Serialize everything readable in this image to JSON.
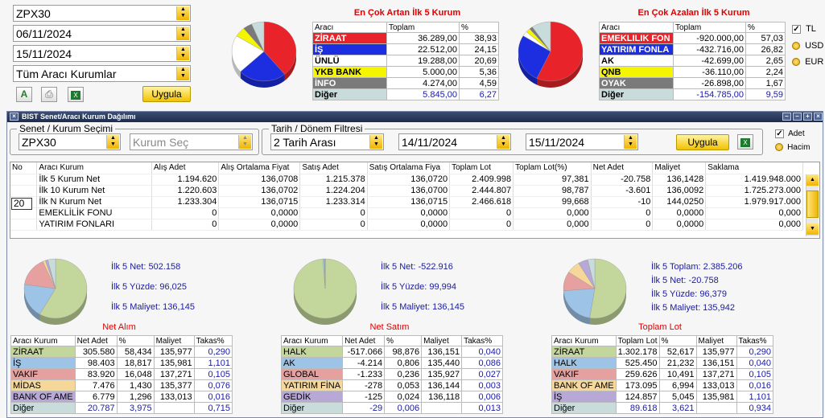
{
  "filters": {
    "symbol": "ZPX30",
    "date_start": "06/11/2024",
    "date_end": "15/11/2024",
    "institutions": "Tüm Aracı Kurumlar",
    "apply": "Uygula"
  },
  "top_increase": {
    "title": "En Çok Artan İlk 5 Kurum",
    "headers": [
      "Aracı",
      "Toplam",
      "%"
    ],
    "rows": [
      {
        "name": "ZİRAAT",
        "total": "36.289,00",
        "pct": "38,93",
        "color": "#e8242a"
      },
      {
        "name": "İŞ",
        "total": "22.512,00",
        "pct": "24,15",
        "color": "#1c2ee0"
      },
      {
        "name": "ÜNLÜ",
        "total": "19.288,00",
        "pct": "20,69",
        "color": "#ffffff"
      },
      {
        "name": "YKB BANK",
        "total": "5.000,00",
        "pct": "5,36",
        "color": "#f5f500"
      },
      {
        "name": "İNFO",
        "total": "4.274,00",
        "pct": "4,59",
        "color": "#7a7a7a"
      },
      {
        "name": "Diğer",
        "total": "5.845,00",
        "pct": "6,27",
        "color": "#c8dcdc"
      }
    ]
  },
  "top_decrease": {
    "title": "En Çok Azalan İlk 5 Kurum",
    "headers": [
      "Aracı",
      "Toplam",
      "%"
    ],
    "rows": [
      {
        "name": "EMEKLILIK FON",
        "total": "-920.000,00",
        "pct": "57,03",
        "color": "#e8242a"
      },
      {
        "name": "YATIRIM FONLA",
        "total": "-432.716,00",
        "pct": "26,82",
        "color": "#1c2ee0"
      },
      {
        "name": "AK",
        "total": "-42.699,00",
        "pct": "2,65",
        "color": "#ffffff"
      },
      {
        "name": "QNB",
        "total": "-36.110,00",
        "pct": "2,24",
        "color": "#f5f500"
      },
      {
        "name": "OYAK",
        "total": "-26.898,00",
        "pct": "1,67",
        "color": "#7a7a7a"
      },
      {
        "name": "Diğer",
        "total": "-154.785,00",
        "pct": "9,59",
        "color": "#c8dcdc"
      }
    ]
  },
  "currency": {
    "options": [
      "TL",
      "USD",
      "EUR"
    ],
    "selected": "TL"
  },
  "window": {
    "title": "BIST Senet/Aracı Kurum Dağılımı",
    "senet_legend": "Senet / Kurum Seçimi",
    "symbol": "ZPX30",
    "kurum_placeholder": "Kurum Seç",
    "date_legend": "Tarih / Dönem Filtresi",
    "range_type": "2 Tarih Arası",
    "date_start": "14/11/2024",
    "date_end": "15/11/2024",
    "apply": "Uygula",
    "mode_options": [
      "Adet",
      "Hacim"
    ],
    "mode_selected": "Adet",
    "grid": {
      "headers": [
        "No",
        "Aracı Kurum",
        "Alış Adet",
        "Alış Ortalama Fiyat",
        "Satış Adet",
        "Satış Ortalama Fiya",
        "Toplam Lot",
        "Toplam Lot(%)",
        "Net Adet",
        "Maliyet",
        "Saklama"
      ],
      "no_value": "20",
      "rows": [
        [
          "",
          "İlk 5 Kurum Net",
          "1.194.620",
          "136,0708",
          "1.215.378",
          "136,0720",
          "2.409.998",
          "97,381",
          "-20.758",
          "136,1428",
          "1.419.948.000"
        ],
        [
          "",
          "İlk 10 Kurum Net",
          "1.220.603",
          "136,0702",
          "1.224.204",
          "136,0700",
          "2.444.807",
          "98,787",
          "-3.601",
          "136,0092",
          "1.725.273.000"
        ],
        [
          "",
          "İlk N Kurum Net",
          "1.233.304",
          "136,0715",
          "1.233.314",
          "136,0715",
          "2.466.618",
          "99,668",
          "-10",
          "144,0250",
          "1.979.917.000"
        ],
        [
          "",
          "EMEKLİLİK FONU",
          "0",
          "0,0000",
          "0",
          "0,0000",
          "0",
          "0,000",
          "0",
          "0,0000",
          "0,000"
        ],
        [
          "",
          "YATIRIM FONLARI",
          "0",
          "0,0000",
          "0",
          "0,0000",
          "0",
          "0,000",
          "0",
          "0,0000",
          "0,000"
        ]
      ]
    },
    "net_alim": {
      "stats": [
        "İlk 5 Net: 502.158",
        "İlk 5 Yüzde: 96,025",
        "İlk 5 Maliyet: 136,145"
      ],
      "subtitle": "Net Alım",
      "headers": [
        "Aracı Kurum",
        "Net Adet",
        "%",
        "Maliyet",
        "Takas%"
      ],
      "rows": [
        {
          "cells": [
            "ZİRAAT",
            "305.580",
            "58,434",
            "135,977",
            "0,290"
          ],
          "color": "#c3d69b"
        },
        {
          "cells": [
            "İŞ",
            "98.403",
            "18,817",
            "135,981",
            "1,101"
          ],
          "color": "#9dc3e6"
        },
        {
          "cells": [
            "VAKIF",
            "83.920",
            "16,048",
            "137,271",
            "0,105"
          ],
          "color": "#e6a0a0"
        },
        {
          "cells": [
            "MİDAS",
            "7.476",
            "1,430",
            "135,377",
            "0,076"
          ],
          "color": "#f5d79a"
        },
        {
          "cells": [
            "BANK OF AME",
            "6.779",
            "1,296",
            "133,013",
            "0,016"
          ],
          "color": "#b7a8d6"
        },
        {
          "cells": [
            "Diğer",
            "20.787",
            "3,975",
            "",
            "0,715"
          ],
          "color": "#c8dcdc"
        }
      ]
    },
    "net_satim": {
      "stats": [
        "İlk 5 Net: -522.916",
        "İlk 5 Yüzde: 99,994",
        "İlk 5 Maliyet: 136,145"
      ],
      "subtitle": "Net Satım",
      "headers": [
        "Aracı Kurum",
        "Net Adet",
        "%",
        "Maliyet",
        "Takas%"
      ],
      "rows": [
        {
          "cells": [
            "HALK",
            "-517.066",
            "98,876",
            "136,151",
            "0,040"
          ],
          "color": "#c3d69b"
        },
        {
          "cells": [
            "AK",
            "-4.214",
            "0,806",
            "135,440",
            "0,086"
          ],
          "color": "#9dc3e6"
        },
        {
          "cells": [
            "GLOBAL",
            "-1.233",
            "0,236",
            "135,927",
            "0,027"
          ],
          "color": "#e6a0a0"
        },
        {
          "cells": [
            "YATIRIM FİNA",
            "-278",
            "0,053",
            "136,144",
            "0,003"
          ],
          "color": "#f5d79a"
        },
        {
          "cells": [
            "GEDİK",
            "-125",
            "0,024",
            "136,118",
            "0,006"
          ],
          "color": "#b7a8d6"
        },
        {
          "cells": [
            "Diğer",
            "-29",
            "0,006",
            "",
            "0,013"
          ],
          "color": "#c8dcdc"
        }
      ]
    },
    "toplam_lot": {
      "stats": [
        "İlk 5 Toplam: 2.385.206",
        "İlk 5 Net: -20.758",
        "İlk 5 Yüzde: 96,379",
        "İlk 5 Maliyet: 135,942"
      ],
      "subtitle": "Toplam Lot",
      "headers": [
        "Aracı Kurum",
        "Toplam Lot",
        "%",
        "Maliyet",
        "Takas%"
      ],
      "rows": [
        {
          "cells": [
            "ZİRAAT",
            "1.302.178",
            "52,617",
            "135,977",
            "0,290"
          ],
          "color": "#c3d69b"
        },
        {
          "cells": [
            "HALK",
            "525.450",
            "21,232",
            "136,151",
            "0,040"
          ],
          "color": "#9dc3e6"
        },
        {
          "cells": [
            "VAKIF",
            "259.626",
            "10,491",
            "137,271",
            "0,105"
          ],
          "color": "#e6a0a0"
        },
        {
          "cells": [
            "BANK OF AME",
            "173.095",
            "6,994",
            "133,013",
            "0,016"
          ],
          "color": "#f5d79a"
        },
        {
          "cells": [
            "İŞ",
            "124.857",
            "5,045",
            "135,981",
            "1,101"
          ],
          "color": "#b7a8d6"
        },
        {
          "cells": [
            "Diğer",
            "89.618",
            "3,621",
            "",
            "0,934"
          ],
          "color": "#c8dcdc"
        }
      ]
    }
  },
  "pies": {
    "top_increase": [
      {
        "value": 38.93,
        "color": "#e8242a"
      },
      {
        "value": 24.15,
        "color": "#1c2ee0"
      },
      {
        "value": 20.69,
        "color": "#ffffff"
      },
      {
        "value": 5.36,
        "color": "#f5f500"
      },
      {
        "value": 4.59,
        "color": "#7a7a7a"
      },
      {
        "value": 6.27,
        "color": "#c8dcdc"
      }
    ],
    "top_decrease": [
      {
        "value": 57.03,
        "color": "#e8242a"
      },
      {
        "value": 26.82,
        "color": "#1c2ee0"
      },
      {
        "value": 2.65,
        "color": "#ffffff"
      },
      {
        "value": 2.24,
        "color": "#f5f500"
      },
      {
        "value": 1.67,
        "color": "#7a7a7a"
      },
      {
        "value": 9.59,
        "color": "#c8dcdc"
      }
    ],
    "net_alim": [
      {
        "value": 58.434,
        "color": "#c3d69b"
      },
      {
        "value": 18.817,
        "color": "#9dc3e6"
      },
      {
        "value": 16.048,
        "color": "#e6a0a0"
      },
      {
        "value": 1.43,
        "color": "#f5d79a"
      },
      {
        "value": 1.296,
        "color": "#b7a8d6"
      },
      {
        "value": 3.975,
        "color": "#c8dcdc"
      }
    ],
    "net_satim": [
      {
        "value": 98.876,
        "color": "#c3d69b"
      },
      {
        "value": 0.806,
        "color": "#9dc3e6"
      },
      {
        "value": 0.236,
        "color": "#e6a0a0"
      },
      {
        "value": 0.053,
        "color": "#f5d79a"
      },
      {
        "value": 0.024,
        "color": "#b7a8d6"
      },
      {
        "value": 0.006,
        "color": "#c8dcdc"
      }
    ],
    "toplam_lot": [
      {
        "value": 52.617,
        "color": "#c3d69b"
      },
      {
        "value": 21.232,
        "color": "#9dc3e6"
      },
      {
        "value": 10.491,
        "color": "#e6a0a0"
      },
      {
        "value": 6.994,
        "color": "#f5d79a"
      },
      {
        "value": 5.045,
        "color": "#b7a8d6"
      },
      {
        "value": 3.621,
        "color": "#c8dcdc"
      }
    ]
  }
}
